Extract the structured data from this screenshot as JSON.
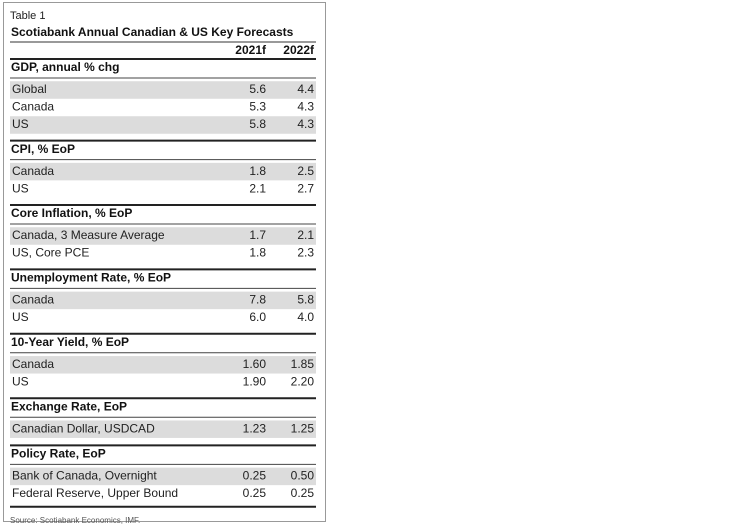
{
  "header": {
    "label": "Table 1",
    "title": "Scotiabank Annual Canadian & US Key Forecasts"
  },
  "columns": [
    "2021f",
    "2022f"
  ],
  "sections": [
    {
      "heading": "GDP, annual % chg",
      "rows": [
        [
          "Global",
          "5.6",
          "4.4"
        ],
        [
          "Canada",
          "5.3",
          "4.3"
        ],
        [
          "US",
          "5.8",
          "4.3"
        ]
      ]
    },
    {
      "heading": "CPI, % EoP",
      "rows": [
        [
          "Canada",
          "1.8",
          "2.5"
        ],
        [
          "US",
          "2.1",
          "2.7"
        ]
      ]
    },
    {
      "heading": "Core Inflation, % EoP",
      "rows": [
        [
          "Canada, 3 Measure Average",
          "1.7",
          "2.1"
        ],
        [
          "US, Core PCE",
          "1.8",
          "2.3"
        ]
      ]
    },
    {
      "heading": "Unemployment Rate, % EoP",
      "rows": [
        [
          "Canada",
          "7.8",
          "5.8"
        ],
        [
          "US",
          "6.0",
          "4.0"
        ]
      ]
    },
    {
      "heading": "10-Year Yield, % EoP",
      "rows": [
        [
          "Canada",
          "1.60",
          "1.85"
        ],
        [
          "US",
          "1.90",
          "2.20"
        ]
      ]
    },
    {
      "heading": "Exchange Rate, EoP",
      "rows": [
        [
          "Canadian Dollar, USDCAD",
          "1.23",
          "1.25"
        ]
      ]
    },
    {
      "heading": "Policy Rate, EoP",
      "rows": [
        [
          "Bank of Canada, Overnight",
          "0.25",
          "0.50"
        ],
        [
          "Federal Reserve, Upper Bound",
          "0.25",
          "0.25"
        ]
      ]
    }
  ],
  "source": "Source: Scotiabank Economics, IMF."
}
